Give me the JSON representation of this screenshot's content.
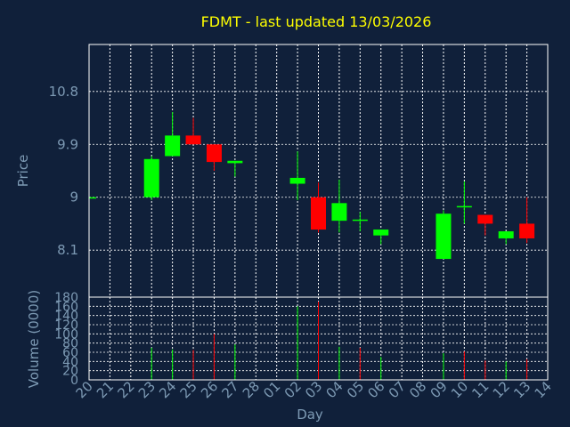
{
  "chart_data": [
    {
      "type": "candlestick",
      "title": "FDMT - last updated 13/03/2026",
      "ylabel": "Price",
      "xlabel": "Day",
      "ylim": [
        7.3,
        11.6
      ],
      "yticks": [
        "10.8",
        "9.9",
        "9",
        "8.1"
      ],
      "ytick_values": [
        10.8,
        9.9,
        9.0,
        8.1
      ],
      "grid": true,
      "up_color": "#00ff00",
      "down_color": "#ff0000",
      "categories": [
        "20",
        "21",
        "22",
        "23",
        "24",
        "25",
        "26",
        "27",
        "28",
        "01",
        "02",
        "03",
        "04",
        "05",
        "06",
        "07",
        "08",
        "09",
        "10",
        "11",
        "12",
        "13",
        "14"
      ],
      "candles": [
        {
          "day": "20",
          "open": 9.0,
          "high": 9.0,
          "low": 9.0,
          "close": 9.0
        },
        {
          "day": "23",
          "open": 9.0,
          "high": 9.7,
          "low": 8.95,
          "close": 9.65
        },
        {
          "day": "24",
          "open": 9.7,
          "high": 10.45,
          "low": 9.7,
          "close": 10.05
        },
        {
          "day": "25",
          "open": 10.05,
          "high": 10.35,
          "low": 9.9,
          "close": 9.9
        },
        {
          "day": "26",
          "open": 9.9,
          "high": 9.9,
          "low": 9.45,
          "close": 9.6
        },
        {
          "day": "27",
          "open": 9.58,
          "high": 9.62,
          "low": 9.35,
          "close": 9.62
        },
        {
          "day": "02",
          "open": 9.23,
          "high": 9.78,
          "low": 8.95,
          "close": 9.33
        },
        {
          "day": "03",
          "open": 9.0,
          "high": 9.25,
          "low": 8.4,
          "close": 8.45
        },
        {
          "day": "04",
          "open": 8.6,
          "high": 9.3,
          "low": 8.4,
          "close": 8.9
        },
        {
          "day": "05",
          "open": 8.62,
          "high": 8.75,
          "low": 8.42,
          "close": 8.62
        },
        {
          "day": "06",
          "open": 8.35,
          "high": 8.45,
          "low": 8.2,
          "close": 8.45
        },
        {
          "day": "09",
          "open": 7.95,
          "high": 8.78,
          "low": 7.95,
          "close": 8.72
        },
        {
          "day": "10",
          "open": 8.85,
          "high": 9.27,
          "low": 8.55,
          "close": 8.85
        },
        {
          "day": "11",
          "open": 8.7,
          "high": 8.7,
          "low": 8.35,
          "close": 8.55
        },
        {
          "day": "12",
          "open": 8.3,
          "high": 8.42,
          "low": 8.2,
          "close": 8.42
        },
        {
          "day": "13",
          "open": 8.55,
          "high": 9.0,
          "low": 8.22,
          "close": 8.3
        }
      ]
    },
    {
      "type": "bar",
      "ylabel": "Volume (0000)",
      "xlabel": "Day",
      "ylim": [
        0,
        180
      ],
      "yticks": [
        "180",
        "160",
        "140",
        "120",
        "100",
        "80",
        "60",
        "40",
        "20",
        "0"
      ],
      "ytick_values": [
        180,
        160,
        140,
        120,
        100,
        80,
        60,
        40,
        20,
        0
      ],
      "grid": true,
      "bars": [
        {
          "day": "20",
          "value": 0,
          "dir": "up"
        },
        {
          "day": "23",
          "value": 70,
          "dir": "up"
        },
        {
          "day": "24",
          "value": 66,
          "dir": "up"
        },
        {
          "day": "25",
          "value": 65,
          "dir": "down"
        },
        {
          "day": "26",
          "value": 100,
          "dir": "down"
        },
        {
          "day": "27",
          "value": 77,
          "dir": "up"
        },
        {
          "day": "02",
          "value": 160,
          "dir": "up"
        },
        {
          "day": "03",
          "value": 170,
          "dir": "down"
        },
        {
          "day": "04",
          "value": 72,
          "dir": "up"
        },
        {
          "day": "05",
          "value": 70,
          "dir": "down"
        },
        {
          "day": "06",
          "value": 50,
          "dir": "up"
        },
        {
          "day": "09",
          "value": 58,
          "dir": "up"
        },
        {
          "day": "10",
          "value": 62,
          "dir": "down"
        },
        {
          "day": "11",
          "value": 42,
          "dir": "down"
        },
        {
          "day": "12",
          "value": 40,
          "dir": "up"
        },
        {
          "day": "13",
          "value": 45,
          "dir": "down"
        }
      ]
    }
  ]
}
